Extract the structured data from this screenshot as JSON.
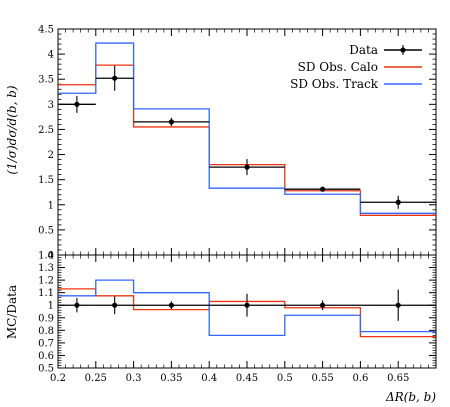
{
  "chart_data": {
    "type": "line",
    "bin_edges": [
      0.2,
      0.25,
      0.3,
      0.4,
      0.5,
      0.6,
      0.7
    ],
    "data": {
      "name": "Data",
      "x": [
        0.225,
        0.275,
        0.35,
        0.45,
        0.55,
        0.65
      ],
      "y": [
        3.0,
        3.52,
        2.65,
        1.75,
        1.31,
        1.05
      ],
      "err": [
        0.17,
        0.25,
        0.08,
        0.16,
        0.05,
        0.13
      ],
      "color": "#000000"
    },
    "series": [
      {
        "name": "SD Obs. Calo",
        "values": [
          3.39,
          3.78,
          2.55,
          1.8,
          1.28,
          0.79
        ],
        "ratio": [
          1.13,
          1.075,
          0.965,
          1.03,
          0.98,
          0.75
        ],
        "color": "#ee3311"
      },
      {
        "name": "SD Obs. Track",
        "values": [
          3.22,
          4.22,
          2.91,
          1.33,
          1.21,
          0.83
        ],
        "ratio": [
          1.075,
          1.2,
          1.1,
          0.76,
          0.92,
          0.79
        ],
        "color": "#3366ff"
      }
    ],
    "ratio_data_err": [
      0.057,
      0.071,
      0.03,
      0.091,
      0.038,
      0.124
    ],
    "xlim": [
      0.2,
      0.7
    ],
    "ylim": [
      0,
      4.5
    ],
    "ratio_ylim": [
      0.5,
      1.4
    ],
    "xticks": [
      "0.2",
      "0.25",
      "0.3",
      "0.35",
      "0.4",
      "0.45",
      "0.5",
      "0.55",
      "0.6",
      "0.65"
    ],
    "yticks": [
      "0",
      "0.5",
      "1",
      "1.5",
      "2",
      "2.5",
      "3",
      "3.5",
      "4",
      "4.5"
    ],
    "ratio_yticks": [
      "0.5",
      "0.6",
      "0.7",
      "0.8",
      "0.9",
      "1",
      "1.1",
      "1.2",
      "1.3",
      "1.4"
    ],
    "ylabel": "(1/σ)dσ/d(b, b)",
    "ratio_ylabel": "MC/Data",
    "xlabel": "ΔR(b, b)",
    "legend_position": "top-right"
  }
}
